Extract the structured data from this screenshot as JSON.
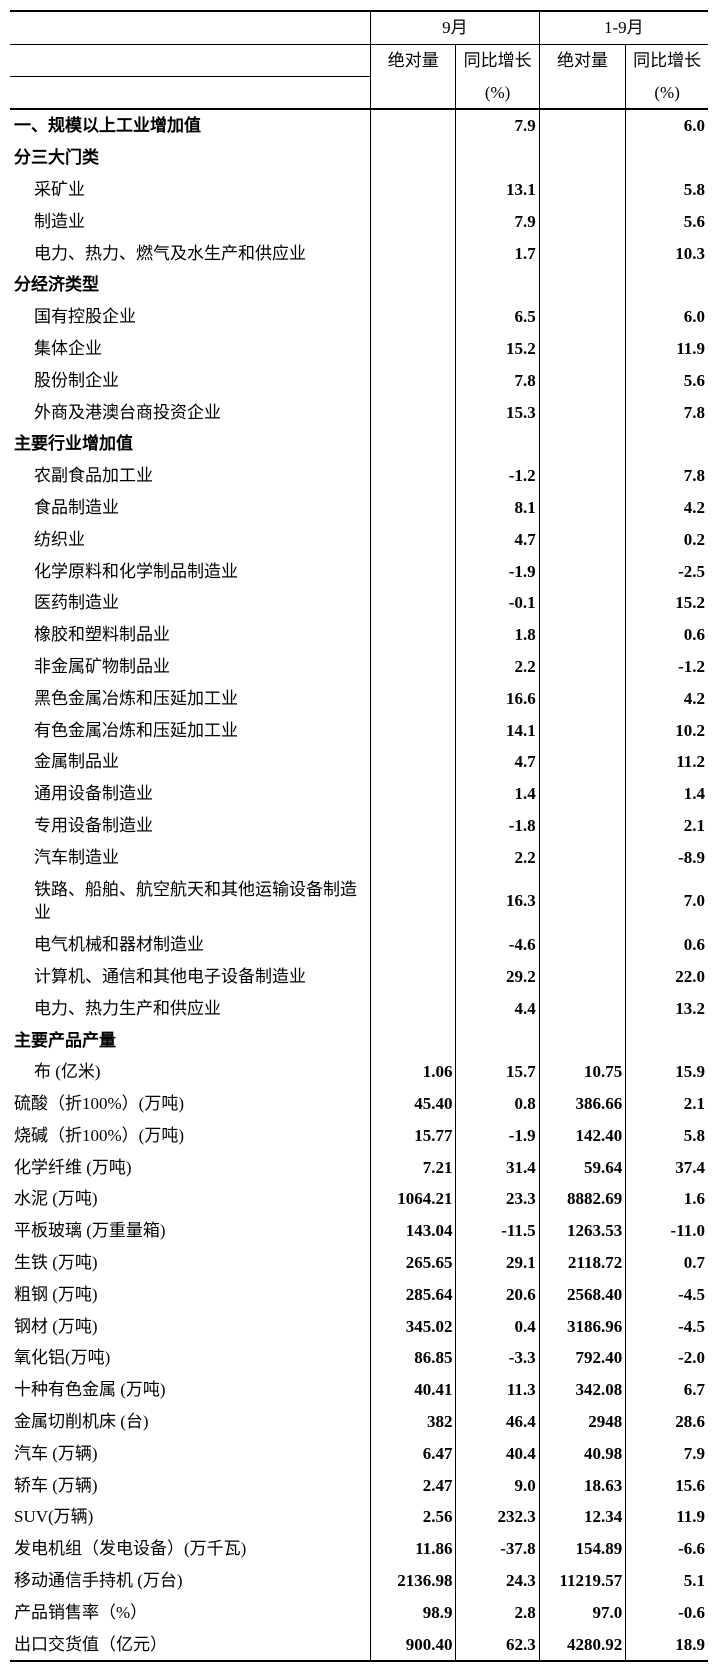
{
  "table": {
    "header": {
      "sept": "9月",
      "ytd": "1-9月",
      "abs": "绝对量",
      "yoy": "同比增长",
      "pct": "(%)"
    },
    "background_color": "#ffffff",
    "text_color": "#000000",
    "border_color": "#000000",
    "label_fontsize": 17,
    "number_font": "Times New Roman",
    "columns": [
      "label",
      "sept_abs",
      "sept_yoy",
      "ytd_abs",
      "ytd_yoy"
    ],
    "rows": [
      {
        "label": "一、规模以上工业增加值",
        "sept_abs": "",
        "sept_yoy": "7.9",
        "ytd_abs": "",
        "ytd_yoy": "6.0",
        "bold": true
      },
      {
        "label": "分三大门类",
        "sept_abs": "",
        "sept_yoy": "",
        "ytd_abs": "",
        "ytd_yoy": "",
        "bold": true
      },
      {
        "label": "采矿业",
        "sept_abs": "",
        "sept_yoy": "13.1",
        "ytd_abs": "",
        "ytd_yoy": "5.8",
        "bold": false,
        "indent": 1
      },
      {
        "label": "制造业",
        "sept_abs": "",
        "sept_yoy": "7.9",
        "ytd_abs": "",
        "ytd_yoy": "5.6",
        "bold": false,
        "indent": 1
      },
      {
        "label": "电力、热力、燃气及水生产和供应业",
        "sept_abs": "",
        "sept_yoy": "1.7",
        "ytd_abs": "",
        "ytd_yoy": "10.3",
        "bold": false,
        "indent": 1
      },
      {
        "label": "分经济类型",
        "sept_abs": "",
        "sept_yoy": "",
        "ytd_abs": "",
        "ytd_yoy": "",
        "bold": true
      },
      {
        "label": "国有控股企业",
        "sept_abs": "",
        "sept_yoy": "6.5",
        "ytd_abs": "",
        "ytd_yoy": "6.0",
        "bold": false,
        "indent": 1
      },
      {
        "label": "集体企业",
        "sept_abs": "",
        "sept_yoy": "15.2",
        "ytd_abs": "",
        "ytd_yoy": "11.9",
        "bold": false,
        "indent": 1
      },
      {
        "label": "股份制企业",
        "sept_abs": "",
        "sept_yoy": "7.8",
        "ytd_abs": "",
        "ytd_yoy": "5.6",
        "bold": false,
        "indent": 1
      },
      {
        "label": "外商及港澳台商投资企业",
        "sept_abs": "",
        "sept_yoy": "15.3",
        "ytd_abs": "",
        "ytd_yoy": "7.8",
        "bold": false,
        "indent": 1
      },
      {
        "label": "主要行业增加值",
        "sept_abs": "",
        "sept_yoy": "",
        "ytd_abs": "",
        "ytd_yoy": "",
        "bold": true
      },
      {
        "label": "农副食品加工业",
        "sept_abs": "",
        "sept_yoy": "-1.2",
        "ytd_abs": "",
        "ytd_yoy": "7.8",
        "bold": false,
        "indent": 1
      },
      {
        "label": "食品制造业",
        "sept_abs": "",
        "sept_yoy": "8.1",
        "ytd_abs": "",
        "ytd_yoy": "4.2",
        "bold": false,
        "indent": 1
      },
      {
        "label": "纺织业",
        "sept_abs": "",
        "sept_yoy": "4.7",
        "ytd_abs": "",
        "ytd_yoy": "0.2",
        "bold": false,
        "indent": 1
      },
      {
        "label": "化学原料和化学制品制造业",
        "sept_abs": "",
        "sept_yoy": "-1.9",
        "ytd_abs": "",
        "ytd_yoy": "-2.5",
        "bold": false,
        "indent": 1
      },
      {
        "label": "医药制造业",
        "sept_abs": "",
        "sept_yoy": "-0.1",
        "ytd_abs": "",
        "ytd_yoy": "15.2",
        "bold": false,
        "indent": 1
      },
      {
        "label": "橡胶和塑料制品业",
        "sept_abs": "",
        "sept_yoy": "1.8",
        "ytd_abs": "",
        "ytd_yoy": "0.6",
        "bold": false,
        "indent": 1
      },
      {
        "label": "非金属矿物制品业",
        "sept_abs": "",
        "sept_yoy": "2.2",
        "ytd_abs": "",
        "ytd_yoy": "-1.2",
        "bold": false,
        "indent": 1
      },
      {
        "label": "黑色金属冶炼和压延加工业",
        "sept_abs": "",
        "sept_yoy": "16.6",
        "ytd_abs": "",
        "ytd_yoy": "4.2",
        "bold": false,
        "indent": 1
      },
      {
        "label": "有色金属冶炼和压延加工业",
        "sept_abs": "",
        "sept_yoy": "14.1",
        "ytd_abs": "",
        "ytd_yoy": "10.2",
        "bold": false,
        "indent": 1
      },
      {
        "label": "金属制品业",
        "sept_abs": "",
        "sept_yoy": "4.7",
        "ytd_abs": "",
        "ytd_yoy": "11.2",
        "bold": false,
        "indent": 1
      },
      {
        "label": "通用设备制造业",
        "sept_abs": "",
        "sept_yoy": "1.4",
        "ytd_abs": "",
        "ytd_yoy": "1.4",
        "bold": false,
        "indent": 1
      },
      {
        "label": "专用设备制造业",
        "sept_abs": "",
        "sept_yoy": "-1.8",
        "ytd_abs": "",
        "ytd_yoy": "2.1",
        "bold": false,
        "indent": 1
      },
      {
        "label": "汽车制造业",
        "sept_abs": "",
        "sept_yoy": "2.2",
        "ytd_abs": "",
        "ytd_yoy": "-8.9",
        "bold": false,
        "indent": 1
      },
      {
        "label": "铁路、船舶、航空航天和其他运输设备制造业",
        "sept_abs": "",
        "sept_yoy": "16.3",
        "ytd_abs": "",
        "ytd_yoy": "7.0",
        "bold": false,
        "indent": 1
      },
      {
        "label": "电气机械和器材制造业",
        "sept_abs": "",
        "sept_yoy": "-4.6",
        "ytd_abs": "",
        "ytd_yoy": "0.6",
        "bold": false,
        "indent": 1
      },
      {
        "label": "计算机、通信和其他电子设备制造业",
        "sept_abs": "",
        "sept_yoy": "29.2",
        "ytd_abs": "",
        "ytd_yoy": "22.0",
        "bold": false,
        "indent": 1
      },
      {
        "label": "电力、热力生产和供应业",
        "sept_abs": "",
        "sept_yoy": "4.4",
        "ytd_abs": "",
        "ytd_yoy": "13.2",
        "bold": false,
        "indent": 1
      },
      {
        "label": "主要产品产量",
        "sept_abs": "",
        "sept_yoy": "",
        "ytd_abs": "",
        "ytd_yoy": "",
        "bold": true
      },
      {
        "label": "布 (亿米)",
        "sept_abs": "1.06",
        "sept_yoy": "15.7",
        "ytd_abs": "10.75",
        "ytd_yoy": "15.9",
        "bold": false,
        "indent": 1
      },
      {
        "label": "硫酸（折100%）(万吨)",
        "sept_abs": "45.40",
        "sept_yoy": "0.8",
        "ytd_abs": "386.66",
        "ytd_yoy": "2.1",
        "bold": false
      },
      {
        "label": "烧碱（折100%）(万吨)",
        "sept_abs": "15.77",
        "sept_yoy": "-1.9",
        "ytd_abs": "142.40",
        "ytd_yoy": "5.8",
        "bold": false
      },
      {
        "label": "化学纤维 (万吨)",
        "sept_abs": "7.21",
        "sept_yoy": "31.4",
        "ytd_abs": "59.64",
        "ytd_yoy": "37.4",
        "bold": false
      },
      {
        "label": "水泥 (万吨)",
        "sept_abs": "1064.21",
        "sept_yoy": "23.3",
        "ytd_abs": "8882.69",
        "ytd_yoy": "1.6",
        "bold": false
      },
      {
        "label": "平板玻璃 (万重量箱)",
        "sept_abs": "143.04",
        "sept_yoy": "-11.5",
        "ytd_abs": "1263.53",
        "ytd_yoy": "-11.0",
        "bold": false
      },
      {
        "label": "生铁 (万吨)",
        "sept_abs": "265.65",
        "sept_yoy": "29.1",
        "ytd_abs": "2118.72",
        "ytd_yoy": "0.7",
        "bold": false
      },
      {
        "label": "粗钢 (万吨)",
        "sept_abs": "285.64",
        "sept_yoy": "20.6",
        "ytd_abs": "2568.40",
        "ytd_yoy": "-4.5",
        "bold": false
      },
      {
        "label": "钢材 (万吨)",
        "sept_abs": "345.02",
        "sept_yoy": "0.4",
        "ytd_abs": "3186.96",
        "ytd_yoy": "-4.5",
        "bold": false
      },
      {
        "label": "氧化铝(万吨)",
        "sept_abs": "86.85",
        "sept_yoy": "-3.3",
        "ytd_abs": "792.40",
        "ytd_yoy": "-2.0",
        "bold": false
      },
      {
        "label": "十种有色金属 (万吨)",
        "sept_abs": "40.41",
        "sept_yoy": "11.3",
        "ytd_abs": "342.08",
        "ytd_yoy": "6.7",
        "bold": false
      },
      {
        "label": "金属切削机床 (台)",
        "sept_abs": "382",
        "sept_yoy": "46.4",
        "ytd_abs": "2948",
        "ytd_yoy": "28.6",
        "bold": false
      },
      {
        "label": "汽车 (万辆)",
        "sept_abs": "6.47",
        "sept_yoy": "40.4",
        "ytd_abs": "40.98",
        "ytd_yoy": "7.9",
        "bold": false
      },
      {
        "label": "轿车 (万辆)",
        "sept_abs": "2.47",
        "sept_yoy": "9.0",
        "ytd_abs": "18.63",
        "ytd_yoy": "15.6",
        "bold": false
      },
      {
        "label": "SUV(万辆)",
        "sept_abs": "2.56",
        "sept_yoy": "232.3",
        "ytd_abs": "12.34",
        "ytd_yoy": "11.9",
        "bold": false
      },
      {
        "label": "发电机组（发电设备）(万千瓦)",
        "sept_abs": "11.86",
        "sept_yoy": "-37.8",
        "ytd_abs": "154.89",
        "ytd_yoy": "-6.6",
        "bold": false
      },
      {
        "label": "移动通信手持机 (万台)",
        "sept_abs": "2136.98",
        "sept_yoy": "24.3",
        "ytd_abs": "11219.57",
        "ytd_yoy": "5.1",
        "bold": false
      },
      {
        "label": "产品销售率（%）",
        "sept_abs": "98.9",
        "sept_yoy": "2.8",
        "ytd_abs": "97.0",
        "ytd_yoy": "-0.6",
        "bold": false
      },
      {
        "label": "出口交货值（亿元）",
        "sept_abs": "900.40",
        "sept_yoy": "62.3",
        "ytd_abs": "4280.92",
        "ytd_yoy": "18.9",
        "bold": false
      }
    ]
  }
}
